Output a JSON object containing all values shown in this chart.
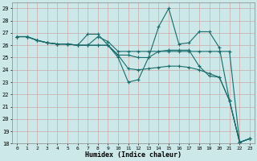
{
  "xlabel": "Humidex (Indice chaleur)",
  "bg_color": "#cce8e8",
  "grid_color": "#aacccc",
  "line_color": "#1a6b6b",
  "xlim": [
    -0.5,
    23.5
  ],
  "ylim": [
    18,
    29.5
  ],
  "yticks": [
    18,
    19,
    20,
    21,
    22,
    23,
    24,
    25,
    26,
    27,
    28,
    29
  ],
  "xticks": [
    0,
    1,
    2,
    3,
    4,
    5,
    6,
    7,
    8,
    9,
    10,
    11,
    12,
    13,
    14,
    15,
    16,
    17,
    18,
    19,
    20,
    21,
    22,
    23
  ],
  "series": [
    [
      26.7,
      26.7,
      26.4,
      26.2,
      26.1,
      26.1,
      26.0,
      26.9,
      26.9,
      26.0,
      25.0,
      23.0,
      23.2,
      25.0,
      27.5,
      29.0,
      26.1,
      26.2,
      27.1,
      27.1,
      25.8,
      21.5,
      18.1,
      18.4
    ],
    [
      26.7,
      26.7,
      26.4,
      26.2,
      26.1,
      26.1,
      26.0,
      26.0,
      26.7,
      26.3,
      25.5,
      25.5,
      25.5,
      25.5,
      25.5,
      25.5,
      25.5,
      25.5,
      25.5,
      25.5,
      25.5,
      25.5,
      18.1,
      18.4
    ],
    [
      26.7,
      26.7,
      26.4,
      26.2,
      26.1,
      26.1,
      26.0,
      26.0,
      26.0,
      26.0,
      25.2,
      25.2,
      25.0,
      25.0,
      25.5,
      25.6,
      25.6,
      25.6,
      24.3,
      23.5,
      23.4,
      21.5,
      18.1,
      18.4
    ],
    [
      26.7,
      26.7,
      26.4,
      26.2,
      26.1,
      26.1,
      26.0,
      26.0,
      26.0,
      26.0,
      25.2,
      24.1,
      24.0,
      24.1,
      24.2,
      24.3,
      24.3,
      24.2,
      24.0,
      23.7,
      23.4,
      21.5,
      18.1,
      18.4
    ]
  ]
}
